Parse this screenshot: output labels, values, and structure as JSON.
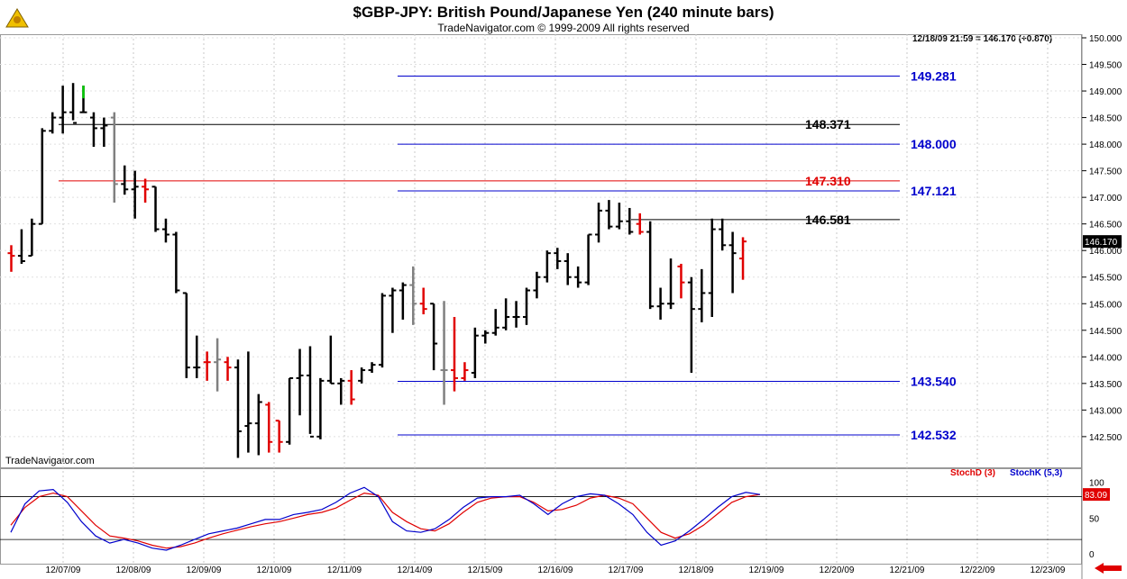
{
  "title": "$GBP-JPY:  British Pound/Japanese Yen  (240 minute bars)",
  "subtitle": "TradeNavigator.com © 1999-2009 All rights reserved",
  "readout": "12/18/09 21:59 = 146.170 (+0.870)",
  "watermark": "TradeNavigator.com",
  "last_price_label": "146.170",
  "colors": {
    "up": "#000000",
    "down": "#e00000",
    "neutral": "#808080",
    "fib": "#0000cc",
    "stochD": "#e00000",
    "stochK": "#0000cc",
    "flat_marker": "#00cc00"
  },
  "chart_data": {
    "type": "ohlc",
    "price_axis": {
      "min": 142.0,
      "max": 150.0,
      "ticks": [
        "150.000",
        "149.500",
        "149.000",
        "148.500",
        "148.000",
        "147.500",
        "147.000",
        "146.500",
        "146.000",
        "145.500",
        "145.000",
        "144.500",
        "144.000",
        "143.500",
        "143.000",
        "142.500"
      ]
    },
    "x_labels": [
      "12/07/09",
      "12/08/09",
      "12/09/09",
      "12/10/09",
      "12/11/09",
      "12/14/09",
      "12/15/09",
      "12/16/09",
      "12/17/09",
      "12/18/09",
      "12/19/09",
      "12/20/09",
      "12/21/09",
      "12/22/09",
      "12/23/09"
    ],
    "bars": [
      {
        "o": 145.95,
        "h": 146.1,
        "l": 145.6,
        "c": 145.9,
        "t": "down"
      },
      {
        "o": 145.9,
        "h": 146.4,
        "l": 145.75,
        "c": 145.8,
        "t": "up"
      },
      {
        "o": 145.9,
        "h": 146.6,
        "l": 145.9,
        "c": 146.5,
        "t": "up"
      },
      {
        "o": 146.5,
        "h": 148.3,
        "l": 146.5,
        "c": 148.25,
        "t": "up"
      },
      {
        "o": 148.25,
        "h": 148.6,
        "l": 148.2,
        "c": 148.5,
        "t": "up"
      },
      {
        "o": 148.5,
        "h": 149.1,
        "l": 148.2,
        "c": 148.6,
        "t": "up"
      },
      {
        "o": 148.6,
        "h": 149.15,
        "l": 148.45,
        "c": 148.4,
        "t": "up"
      },
      {
        "o": 148.6,
        "h": 149.1,
        "l": 148.6,
        "c": 148.6,
        "t": "flat"
      },
      {
        "o": 148.5,
        "h": 148.6,
        "l": 147.95,
        "c": 148.3,
        "t": "up"
      },
      {
        "o": 148.3,
        "h": 148.5,
        "l": 147.95,
        "c": 148.35,
        "t": "up"
      },
      {
        "o": 148.5,
        "h": 148.6,
        "l": 146.9,
        "c": 147.25,
        "t": "neutral"
      },
      {
        "o": 147.25,
        "h": 147.6,
        "l": 147.05,
        "c": 147.15,
        "t": "up"
      },
      {
        "o": 147.15,
        "h": 147.5,
        "l": 146.6,
        "c": 147.2,
        "t": "up"
      },
      {
        "o": 147.2,
        "h": 147.35,
        "l": 146.9,
        "c": 147.15,
        "t": "down"
      },
      {
        "o": 147.2,
        "h": 147.2,
        "l": 146.35,
        "c": 146.4,
        "t": "up"
      },
      {
        "o": 146.4,
        "h": 146.6,
        "l": 146.15,
        "c": 146.3,
        "t": "up"
      },
      {
        "o": 146.3,
        "h": 146.35,
        "l": 145.2,
        "c": 145.25,
        "t": "up"
      },
      {
        "o": 145.2,
        "h": 145.2,
        "l": 143.6,
        "c": 143.8,
        "t": "up"
      },
      {
        "o": 143.8,
        "h": 144.4,
        "l": 143.6,
        "c": 143.8,
        "t": "up"
      },
      {
        "o": 143.9,
        "h": 144.1,
        "l": 143.55,
        "c": 143.9,
        "t": "down"
      },
      {
        "o": 143.9,
        "h": 144.35,
        "l": 143.35,
        "c": 143.95,
        "t": "neutral"
      },
      {
        "o": 143.9,
        "h": 144.0,
        "l": 143.55,
        "c": 143.8,
        "t": "down"
      },
      {
        "o": 143.8,
        "h": 143.95,
        "l": 142.1,
        "c": 142.6,
        "t": "up"
      },
      {
        "o": 142.7,
        "h": 144.1,
        "l": 142.2,
        "c": 142.75,
        "t": "up"
      },
      {
        "o": 142.75,
        "h": 143.3,
        "l": 142.15,
        "c": 143.15,
        "t": "up"
      },
      {
        "o": 143.1,
        "h": 143.15,
        "l": 142.2,
        "c": 142.4,
        "t": "down"
      },
      {
        "o": 142.8,
        "h": 142.8,
        "l": 142.2,
        "c": 142.4,
        "t": "down"
      },
      {
        "o": 142.4,
        "h": 143.6,
        "l": 142.35,
        "c": 143.6,
        "t": "up"
      },
      {
        "o": 143.6,
        "h": 144.15,
        "l": 142.9,
        "c": 143.65,
        "t": "up"
      },
      {
        "o": 143.65,
        "h": 144.2,
        "l": 142.55,
        "c": 142.5,
        "t": "up"
      },
      {
        "o": 142.5,
        "h": 143.6,
        "l": 142.45,
        "c": 143.55,
        "t": "up"
      },
      {
        "o": 143.55,
        "h": 144.4,
        "l": 143.5,
        "c": 143.5,
        "t": "up"
      },
      {
        "o": 143.5,
        "h": 143.6,
        "l": 143.1,
        "c": 143.55,
        "t": "up"
      },
      {
        "o": 143.55,
        "h": 143.75,
        "l": 143.1,
        "c": 143.2,
        "t": "down"
      },
      {
        "o": 143.55,
        "h": 143.8,
        "l": 143.5,
        "c": 143.75,
        "t": "up"
      },
      {
        "o": 143.75,
        "h": 143.9,
        "l": 143.7,
        "c": 143.85,
        "t": "up"
      },
      {
        "o": 143.85,
        "h": 145.2,
        "l": 143.8,
        "c": 145.15,
        "t": "up"
      },
      {
        "o": 145.15,
        "h": 145.3,
        "l": 144.45,
        "c": 145.25,
        "t": "up"
      },
      {
        "o": 145.25,
        "h": 145.4,
        "l": 144.7,
        "c": 145.35,
        "t": "up"
      },
      {
        "o": 145.35,
        "h": 145.7,
        "l": 144.6,
        "c": 145.0,
        "t": "neutral"
      },
      {
        "o": 145.0,
        "h": 145.3,
        "l": 144.8,
        "c": 144.9,
        "t": "down"
      },
      {
        "o": 145.0,
        "h": 145.0,
        "l": 143.75,
        "c": 144.25,
        "t": "up"
      },
      {
        "o": 143.75,
        "h": 145.05,
        "l": 143.1,
        "c": 143.75,
        "t": "neutral"
      },
      {
        "o": 143.75,
        "h": 144.75,
        "l": 143.35,
        "c": 143.6,
        "t": "down"
      },
      {
        "o": 143.6,
        "h": 143.9,
        "l": 143.55,
        "c": 143.75,
        "t": "down"
      },
      {
        "o": 143.7,
        "h": 144.55,
        "l": 143.6,
        "c": 144.4,
        "t": "up"
      },
      {
        "o": 144.4,
        "h": 144.5,
        "l": 144.25,
        "c": 144.45,
        "t": "up"
      },
      {
        "o": 144.45,
        "h": 144.9,
        "l": 144.4,
        "c": 144.55,
        "t": "up"
      },
      {
        "o": 144.55,
        "h": 145.1,
        "l": 144.5,
        "c": 144.75,
        "t": "up"
      },
      {
        "o": 144.75,
        "h": 145.05,
        "l": 144.55,
        "c": 144.75,
        "t": "up"
      },
      {
        "o": 144.75,
        "h": 145.3,
        "l": 144.6,
        "c": 145.25,
        "t": "up"
      },
      {
        "o": 145.25,
        "h": 145.6,
        "l": 145.1,
        "c": 145.5,
        "t": "up"
      },
      {
        "o": 145.5,
        "h": 146.0,
        "l": 145.4,
        "c": 145.95,
        "t": "up"
      },
      {
        "o": 145.95,
        "h": 146.05,
        "l": 145.65,
        "c": 145.8,
        "t": "up"
      },
      {
        "o": 145.8,
        "h": 145.95,
        "l": 145.35,
        "c": 145.5,
        "t": "up"
      },
      {
        "o": 145.5,
        "h": 145.7,
        "l": 145.3,
        "c": 145.4,
        "t": "up"
      },
      {
        "o": 145.4,
        "h": 146.3,
        "l": 145.35,
        "c": 146.3,
        "t": "up"
      },
      {
        "o": 146.3,
        "h": 146.9,
        "l": 146.15,
        "c": 146.75,
        "t": "up"
      },
      {
        "o": 146.75,
        "h": 146.95,
        "l": 146.4,
        "c": 146.45,
        "t": "up"
      },
      {
        "o": 146.45,
        "h": 146.9,
        "l": 146.4,
        "c": 146.55,
        "t": "up"
      },
      {
        "o": 146.55,
        "h": 146.8,
        "l": 146.3,
        "c": 146.35,
        "t": "up"
      },
      {
        "o": 146.5,
        "h": 146.7,
        "l": 146.3,
        "c": 146.35,
        "t": "down"
      },
      {
        "o": 146.35,
        "h": 146.55,
        "l": 144.9,
        "c": 144.95,
        "t": "up"
      },
      {
        "o": 144.95,
        "h": 145.3,
        "l": 144.7,
        "c": 145.0,
        "t": "up"
      },
      {
        "o": 145.0,
        "h": 145.85,
        "l": 144.9,
        "c": 145.0,
        "t": "up"
      },
      {
        "o": 145.7,
        "h": 145.75,
        "l": 145.1,
        "c": 145.4,
        "t": "down"
      },
      {
        "o": 145.4,
        "h": 145.5,
        "l": 143.7,
        "c": 144.9,
        "t": "up"
      },
      {
        "o": 144.9,
        "h": 145.65,
        "l": 144.65,
        "c": 145.2,
        "t": "up"
      },
      {
        "o": 145.2,
        "h": 146.6,
        "l": 144.75,
        "c": 146.4,
        "t": "up"
      },
      {
        "o": 146.4,
        "h": 146.6,
        "l": 146.0,
        "c": 146.1,
        "t": "up"
      },
      {
        "o": 146.1,
        "h": 146.35,
        "l": 145.2,
        "c": 145.95,
        "t": "up"
      },
      {
        "o": 145.85,
        "h": 146.25,
        "l": 145.45,
        "c": 146.17,
        "t": "down"
      }
    ],
    "horizontal_lines": [
      {
        "value": 149.281,
        "label": "149.281",
        "color": "#0000cc",
        "from": "12/11/09"
      },
      {
        "value": 148.371,
        "label": "148.371",
        "color": "#000000",
        "from": "12/07/09"
      },
      {
        "value": 148.0,
        "label": "148.000",
        "color": "#0000cc",
        "from": "12/11/09"
      },
      {
        "value": 147.31,
        "label": "147.310",
        "color": "#e00000",
        "from": "12/07/09"
      },
      {
        "value": 147.121,
        "label": "147.121",
        "color": "#0000cc",
        "from": "12/11/09"
      },
      {
        "value": 146.581,
        "label": "146.581",
        "color": "#000000",
        "from": "12/16/09"
      },
      {
        "value": 143.54,
        "label": "143.540",
        "color": "#0000cc",
        "from": "12/11/09"
      },
      {
        "value": 142.532,
        "label": "142.532",
        "color": "#0000cc",
        "from": "12/11/09"
      }
    ],
    "stochastic": {
      "axis": {
        "min": 0,
        "max": 100,
        "ticks": [
          "100",
          "50",
          "0"
        ]
      },
      "levels": [
        80,
        20
      ],
      "last_value_label": "83.09",
      "series": [
        {
          "name": "StochD (3)",
          "values": [
            40,
            65,
            80,
            85,
            80,
            60,
            40,
            25,
            22,
            18,
            12,
            8,
            10,
            15,
            22,
            28,
            33,
            38,
            42,
            45,
            50,
            55,
            58,
            64,
            75,
            85,
            82,
            58,
            45,
            35,
            32,
            42,
            58,
            72,
            78,
            80,
            80,
            72,
            60,
            62,
            68,
            78,
            82,
            78,
            70,
            50,
            30,
            22,
            28,
            40,
            56,
            72,
            80,
            83
          ]
        },
        {
          "name": "StochK (5,3)",
          "values": [
            30,
            70,
            88,
            90,
            72,
            45,
            25,
            15,
            20,
            15,
            8,
            5,
            12,
            20,
            28,
            32,
            36,
            42,
            48,
            48,
            55,
            58,
            62,
            72,
            85,
            93,
            80,
            45,
            32,
            30,
            35,
            48,
            65,
            78,
            80,
            80,
            82,
            70,
            55,
            70,
            80,
            84,
            82,
            70,
            55,
            30,
            12,
            18,
            32,
            48,
            65,
            80,
            86,
            83
          ]
        }
      ]
    }
  }
}
